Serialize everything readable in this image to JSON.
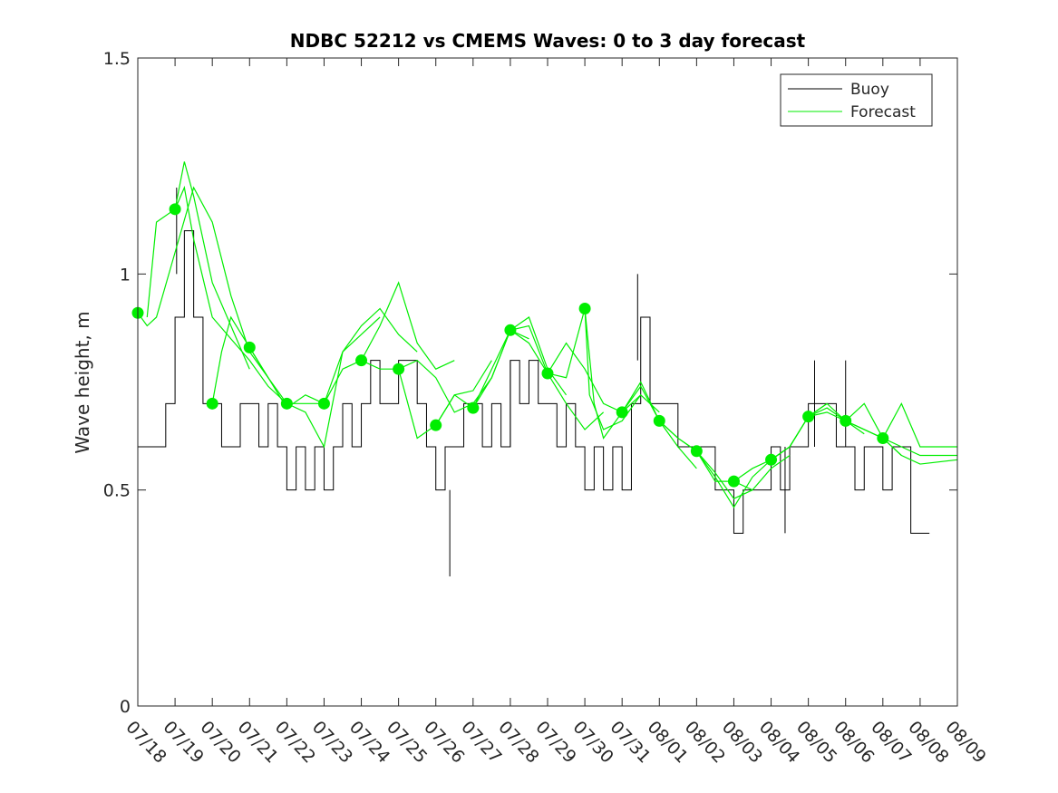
{
  "chart_data": {
    "type": "line",
    "title": "NDBC 52212 vs CMEMS Waves: 0 to 3 day forecast",
    "xlabel": "",
    "ylabel": "Wave height, m",
    "x_domain": [
      "07/18",
      "08/09"
    ],
    "ylim": [
      0,
      1.5
    ],
    "yticks": [
      "0",
      "0.5",
      "1",
      "1.5"
    ],
    "xticks": [
      "07/18",
      "07/19",
      "07/20",
      "07/21",
      "07/22",
      "07/23",
      "07/24",
      "07/25",
      "07/26",
      "07/27",
      "07/28",
      "07/29",
      "07/30",
      "07/31",
      "08/01",
      "08/02",
      "08/03",
      "08/04",
      "08/05",
      "08/06",
      "08/07",
      "08/08",
      "08/09"
    ],
    "grid": false,
    "legend_position": "top-right",
    "legend": [
      "Buoy",
      "Forecast"
    ],
    "colors": {
      "buoy": "#000000",
      "forecast": "#00ee00",
      "axes": "#262626"
    },
    "buoy": [
      [
        "07/18",
        0.6
      ],
      [
        "07/18 12h",
        0.6
      ],
      [
        "07/18 18h",
        0.7
      ],
      [
        "07/19",
        0.9
      ],
      [
        "07/19 06h",
        1.1
      ],
      [
        "07/19 12h",
        0.9
      ],
      [
        "07/19 18h",
        0.7
      ],
      [
        "07/20",
        0.7
      ],
      [
        "07/20 06h",
        0.6
      ],
      [
        "07/20 12h",
        0.6
      ],
      [
        "07/20 18h",
        0.7
      ],
      [
        "07/21",
        0.7
      ],
      [
        "07/21 06h",
        0.6
      ],
      [
        "07/21 12h",
        0.7
      ],
      [
        "07/21 18h",
        0.6
      ],
      [
        "07/22",
        0.5
      ],
      [
        "07/22 06h",
        0.6
      ],
      [
        "07/22 12h",
        0.5
      ],
      [
        "07/22 18h",
        0.6
      ],
      [
        "07/23",
        0.5
      ],
      [
        "07/23 06h",
        0.6
      ],
      [
        "07/23 12h",
        0.7
      ],
      [
        "07/23 18h",
        0.6
      ],
      [
        "07/24",
        0.7
      ],
      [
        "07/24 06h",
        0.8
      ],
      [
        "07/24 12h",
        0.7
      ],
      [
        "07/24 18h",
        0.7
      ],
      [
        "07/25",
        0.8
      ],
      [
        "07/25 06h",
        0.8
      ],
      [
        "07/25 12h",
        0.7
      ],
      [
        "07/25 18h",
        0.6
      ],
      [
        "07/26",
        0.5
      ],
      [
        "07/26 06h",
        0.6
      ],
      [
        "07/26 12h",
        0.6
      ],
      [
        "07/26 18h",
        0.7
      ],
      [
        "07/27",
        0.7
      ],
      [
        "07/27 06h",
        0.6
      ],
      [
        "07/27 12h",
        0.7
      ],
      [
        "07/27 18h",
        0.6
      ],
      [
        "07/28",
        0.8
      ],
      [
        "07/28 06h",
        0.7
      ],
      [
        "07/28 12h",
        0.8
      ],
      [
        "07/28 18h",
        0.7
      ],
      [
        "07/29",
        0.7
      ],
      [
        "07/29 06h",
        0.6
      ],
      [
        "07/29 12h",
        0.7
      ],
      [
        "07/29 18h",
        0.6
      ],
      [
        "07/30",
        0.5
      ],
      [
        "07/30 06h",
        0.6
      ],
      [
        "07/30 12h",
        0.5
      ],
      [
        "07/30 18h",
        0.6
      ],
      [
        "07/31",
        0.5
      ],
      [
        "07/31 06h",
        0.7
      ],
      [
        "07/31 12h",
        0.9
      ],
      [
        "07/31 18h",
        0.7
      ],
      [
        "08/01",
        0.7
      ],
      [
        "08/01 06h",
        0.7
      ],
      [
        "08/01 12h",
        0.6
      ],
      [
        "08/01 18h",
        0.6
      ],
      [
        "08/02",
        0.6
      ],
      [
        "08/02 06h",
        0.6
      ],
      [
        "08/02 12h",
        0.5
      ],
      [
        "08/02 18h",
        0.5
      ],
      [
        "08/03",
        0.4
      ],
      [
        "08/03 06h",
        0.5
      ],
      [
        "08/03 12h",
        0.5
      ],
      [
        "08/03 18h",
        0.5
      ],
      [
        "08/04",
        0.6
      ],
      [
        "08/04 06h",
        0.5
      ],
      [
        "08/04 12h",
        0.6
      ],
      [
        "08/04 18h",
        0.6
      ],
      [
        "08/05",
        0.7
      ],
      [
        "08/05 06h",
        0.7
      ],
      [
        "08/05 12h",
        0.7
      ],
      [
        "08/05 18h",
        0.6
      ],
      [
        "08/06",
        0.6
      ],
      [
        "08/06 06h",
        0.5
      ],
      [
        "08/06 12h",
        0.6
      ],
      [
        "08/06 18h",
        0.6
      ],
      [
        "08/07",
        0.5
      ],
      [
        "08/07 06h",
        0.6
      ],
      [
        "08/07 12h",
        0.6
      ],
      [
        "08/07 18h",
        0.4
      ],
      [
        "08/08",
        0.4
      ],
      [
        "08/08 06h",
        0.4
      ],
      [
        "08/08 06h",
        0.4
      ]
    ],
    "buoy_peaks": [
      [
        "07/19 01h",
        1.2
      ],
      [
        "07/31 10h",
        1.0
      ],
      [
        "08/05 04h",
        0.8
      ],
      [
        "08/06 00h",
        0.8
      ],
      [
        "07/28 00h",
        0.8
      ],
      [
        "07/26 09h",
        0.5
      ],
      [
        "08/04 09h",
        0.6
      ]
    ],
    "forecast_runs": [
      [
        [
          "07/18",
          0.91
        ],
        [
          "07/18 06h",
          0.88
        ],
        [
          "07/18 12h",
          0.9
        ],
        [
          "07/19",
          1.05
        ],
        [
          "07/19 12h",
          1.2
        ],
        [
          "07/20",
          1.12
        ],
        [
          "07/20 12h",
          0.95
        ],
        [
          "07/21",
          0.82
        ],
        [
          "07/21 12h",
          0.76
        ]
      ],
      [
        [
          "07/18 06h",
          0.9
        ],
        [
          "07/18 12h",
          1.12
        ],
        [
          "07/19",
          1.15
        ],
        [
          "07/19 06h",
          1.26
        ],
        [
          "07/19 12h",
          1.18
        ],
        [
          "07/20",
          0.98
        ],
        [
          "07/20 12h",
          0.88
        ],
        [
          "07/21",
          0.78
        ]
      ],
      [
        [
          "07/19",
          1.15
        ],
        [
          "07/19 06h",
          1.2
        ],
        [
          "07/19 12h",
          1.08
        ],
        [
          "07/20",
          0.9
        ],
        [
          "07/20 12h",
          0.85
        ],
        [
          "07/21",
          0.8
        ],
        [
          "07/21 12h",
          0.74
        ],
        [
          "07/22",
          0.7
        ]
      ],
      [
        [
          "07/20",
          0.7
        ],
        [
          "07/20 06h",
          0.82
        ],
        [
          "07/20 12h",
          0.9
        ],
        [
          "07/21",
          0.83
        ],
        [
          "07/21 12h",
          0.76
        ],
        [
          "07/22",
          0.69
        ],
        [
          "07/22 12h",
          0.72
        ],
        [
          "07/23",
          0.7
        ]
      ],
      [
        [
          "07/21",
          0.83
        ],
        [
          "07/21 12h",
          0.76
        ],
        [
          "07/22",
          0.7
        ],
        [
          "07/22 12h",
          0.68
        ],
        [
          "07/23",
          0.6
        ],
        [
          "07/23 12h",
          0.82
        ],
        [
          "07/24",
          0.86
        ],
        [
          "07/24 12h",
          0.9
        ]
      ],
      [
        [
          "07/22",
          0.7
        ],
        [
          "07/22 12h",
          0.7
        ],
        [
          "07/23",
          0.7
        ],
        [
          "07/23 12h",
          0.82
        ],
        [
          "07/24",
          0.88
        ],
        [
          "07/24 12h",
          0.92
        ],
        [
          "07/25",
          0.86
        ],
        [
          "07/25 12h",
          0.82
        ]
      ],
      [
        [
          "07/23",
          0.7
        ],
        [
          "07/23 12h",
          0.78
        ],
        [
          "07/24",
          0.8
        ],
        [
          "07/24 12h",
          0.88
        ],
        [
          "07/25",
          0.98
        ],
        [
          "07/25 12h",
          0.84
        ],
        [
          "07/26",
          0.78
        ],
        [
          "07/26 12h",
          0.8
        ]
      ],
      [
        [
          "07/24",
          0.8
        ],
        [
          "07/24 12h",
          0.78
        ],
        [
          "07/25",
          0.78
        ],
        [
          "07/25 12h",
          0.62
        ],
        [
          "07/26",
          0.65
        ],
        [
          "07/26 12h",
          0.72
        ],
        [
          "07/27",
          0.73
        ],
        [
          "07/27 12h",
          0.8
        ]
      ],
      [
        [
          "07/25",
          0.78
        ],
        [
          "07/25 12h",
          0.8
        ],
        [
          "07/26",
          0.76
        ],
        [
          "07/26 12h",
          0.68
        ],
        [
          "07/27",
          0.7
        ],
        [
          "07/27 12h",
          0.76
        ],
        [
          "07/28",
          0.87
        ],
        [
          "07/28 12h",
          0.85
        ]
      ],
      [
        [
          "07/26",
          0.65
        ],
        [
          "07/26 12h",
          0.72
        ],
        [
          "07/27",
          0.69
        ],
        [
          "07/27 12h",
          0.76
        ],
        [
          "07/28",
          0.87
        ],
        [
          "07/28 12h",
          0.9
        ],
        [
          "07/29",
          0.78
        ],
        [
          "07/29 12h",
          0.72
        ]
      ],
      [
        [
          "07/27",
          0.69
        ],
        [
          "07/27 12h",
          0.78
        ],
        [
          "07/28",
          0.87
        ],
        [
          "07/28 12h",
          0.88
        ],
        [
          "07/29",
          0.77
        ],
        [
          "07/29 12h",
          0.7
        ],
        [
          "07/30",
          0.64
        ],
        [
          "07/30 12h",
          0.68
        ]
      ],
      [
        [
          "07/28",
          0.87
        ],
        [
          "07/28 12h",
          0.84
        ],
        [
          "07/29",
          0.77
        ],
        [
          "07/29 12h",
          0.84
        ],
        [
          "07/30",
          0.78
        ],
        [
          "07/30 12h",
          0.7
        ],
        [
          "07/31",
          0.68
        ],
        [
          "07/31 12h",
          0.72
        ]
      ],
      [
        [
          "07/29",
          0.77
        ],
        [
          "07/29 12h",
          0.76
        ],
        [
          "07/30",
          0.92
        ],
        [
          "07/30 03h",
          0.72
        ],
        [
          "07/30 12h",
          0.64
        ],
        [
          "07/31",
          0.66
        ],
        [
          "07/31 12h",
          0.72
        ],
        [
          "08/01",
          0.68
        ]
      ],
      [
        [
          "07/30",
          0.92
        ],
        [
          "07/30 06h",
          0.7
        ],
        [
          "07/30 12h",
          0.62
        ],
        [
          "07/31",
          0.68
        ],
        [
          "07/31 12h",
          0.75
        ],
        [
          "08/01",
          0.66
        ],
        [
          "08/01 12h",
          0.6
        ],
        [
          "08/02",
          0.55
        ]
      ],
      [
        [
          "07/31",
          0.68
        ],
        [
          "07/31 12h",
          0.74
        ],
        [
          "08/01",
          0.66
        ],
        [
          "08/01 12h",
          0.62
        ],
        [
          "08/02",
          0.59
        ],
        [
          "08/02 12h",
          0.54
        ],
        [
          "08/03",
          0.48
        ],
        [
          "08/03 12h",
          0.5
        ]
      ],
      [
        [
          "08/01",
          0.66
        ],
        [
          "08/01 12h",
          0.62
        ],
        [
          "08/02",
          0.59
        ],
        [
          "08/02 12h",
          0.52
        ],
        [
          "08/03",
          0.52
        ],
        [
          "08/03 12h",
          0.5
        ],
        [
          "08/04",
          0.55
        ],
        [
          "08/04 12h",
          0.58
        ]
      ],
      [
        [
          "08/02",
          0.59
        ],
        [
          "08/02 12h",
          0.53
        ],
        [
          "08/03",
          0.46
        ],
        [
          "08/03 12h",
          0.53
        ],
        [
          "08/04",
          0.57
        ],
        [
          "08/04 12h",
          0.6
        ],
        [
          "08/05",
          0.67
        ],
        [
          "08/05 12h",
          0.7
        ]
      ],
      [
        [
          "08/03",
          0.52
        ],
        [
          "08/03 12h",
          0.55
        ],
        [
          "08/04",
          0.57
        ],
        [
          "08/04 12h",
          0.6
        ],
        [
          "08/05",
          0.67
        ],
        [
          "08/05 12h",
          0.7
        ],
        [
          "08/06",
          0.66
        ],
        [
          "08/06 12h",
          0.63
        ]
      ],
      [
        [
          "08/04",
          0.57
        ],
        [
          "08/04 12h",
          0.6
        ],
        [
          "08/05",
          0.67
        ],
        [
          "08/05 12h",
          0.69
        ],
        [
          "08/06",
          0.66
        ],
        [
          "08/06 12h",
          0.64
        ],
        [
          "08/07",
          0.62
        ],
        [
          "08/07 12h",
          0.58
        ]
      ],
      [
        [
          "08/05",
          0.67
        ],
        [
          "08/05 12h",
          0.68
        ],
        [
          "08/06",
          0.66
        ],
        [
          "08/06 12h",
          0.7
        ],
        [
          "08/07",
          0.62
        ],
        [
          "08/07 12h",
          0.7
        ],
        [
          "08/08",
          0.6
        ],
        [
          "08/09",
          0.6
        ]
      ],
      [
        [
          "08/06",
          0.66
        ],
        [
          "08/06 12h",
          0.64
        ],
        [
          "08/07",
          0.62
        ],
        [
          "08/07 12h",
          0.6
        ],
        [
          "08/08",
          0.58
        ],
        [
          "08/09",
          0.58
        ]
      ],
      [
        [
          "08/07",
          0.62
        ],
        [
          "08/07 12h",
          0.58
        ],
        [
          "08/08",
          0.56
        ],
        [
          "08/09",
          0.57
        ]
      ]
    ],
    "forecast_start_points": [
      [
        "07/18",
        0.91
      ],
      [
        "07/19",
        1.15
      ],
      [
        "07/20",
        0.7
      ],
      [
        "07/21",
        0.83
      ],
      [
        "07/22",
        0.7
      ],
      [
        "07/23",
        0.7
      ],
      [
        "07/24",
        0.8
      ],
      [
        "07/25",
        0.78
      ],
      [
        "07/26",
        0.65
      ],
      [
        "07/27",
        0.69
      ],
      [
        "07/28",
        0.87
      ],
      [
        "07/29",
        0.77
      ],
      [
        "07/30",
        0.92
      ],
      [
        "07/31",
        0.68
      ],
      [
        "08/01",
        0.66
      ],
      [
        "08/02",
        0.59
      ],
      [
        "08/03",
        0.52
      ],
      [
        "08/04",
        0.57
      ],
      [
        "08/05",
        0.67
      ],
      [
        "08/06",
        0.66
      ],
      [
        "08/07",
        0.62
      ]
    ]
  }
}
